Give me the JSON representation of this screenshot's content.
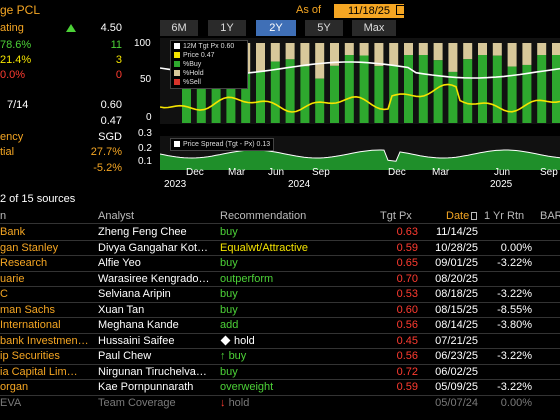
{
  "header": {
    "title_fragment": "ge PCL",
    "as_of_label": "As of",
    "as_of_date": "11/18/25",
    "ranges": [
      "6M",
      "1Y",
      "2Y",
      "5Y",
      "Max"
    ],
    "active_range": "2Y"
  },
  "stats": [
    {
      "label": "ating",
      "value": "4.50",
      "label_color": "#f5a623"
    },
    {
      "label": "78.6%",
      "value": "11",
      "label_color": "#4cd137"
    },
    {
      "label": "21.4%",
      "value": "3",
      "label_color": "#f5e400"
    },
    {
      "label": "0.0%",
      "value": "0",
      "label_color": "#ff3b30"
    },
    {
      "label": "7/14",
      "value": "0.60",
      "label_color": "#ffffff"
    },
    {
      "label": "",
      "value": "0.47",
      "label_color": "#ffffff"
    },
    {
      "label": "ency",
      "value": "SGD",
      "label_color": "#f5a623"
    },
    {
      "label": "tial",
      "value": "27.7%",
      "label_color": "#f5a623"
    },
    {
      "label": "",
      "value": "-5.2%",
      "label_color": "#f5a623"
    }
  ],
  "chart": {
    "y_ticks_main": [
      "100",
      "50",
      "0"
    ],
    "y_ticks_spread": [
      "0.3",
      "0.2",
      "0.1"
    ],
    "legend_main": [
      {
        "label": "12M Tgt Px",
        "value": "0.60",
        "color": "#ffffff"
      },
      {
        "label": "Price",
        "value": "0.47",
        "color": "#f5e400"
      },
      {
        "label": "%Buy",
        "value": "",
        "color": "#2ea82e"
      },
      {
        "label": "%Hold",
        "value": "",
        "color": "#d8c89a"
      },
      {
        "label": "%Sell",
        "value": "",
        "color": "#d9342b"
      }
    ],
    "legend_spread": {
      "label": "Price Spread (Tgt - Px)",
      "value": "0.13"
    },
    "x_months": [
      "Dec",
      "Mar",
      "Jun",
      "Sep",
      "Dec",
      "Mar",
      "Jun",
      "Sep"
    ],
    "x_years": [
      "2023",
      "2024",
      "2025"
    ]
  },
  "sources_label": "2 of 15 sources",
  "table": {
    "columns": [
      "n",
      "Analyst",
      "Recommendation",
      "Tgt Px",
      "Date",
      "1 Yr Rtn",
      "BAR"
    ],
    "rows": [
      {
        "firm": "Bank",
        "analyst": "Zheng Feng Chee",
        "rec": "buy",
        "rec_color": "#4cd137",
        "marker": "",
        "tgt": "0.63",
        "date": "11/14/25",
        "rtn": ""
      },
      {
        "firm": "gan Stanley",
        "analyst": "Divya Gangahar Kot…",
        "rec": "Equalwt/Attractive",
        "rec_color": "#f5e400",
        "marker": "",
        "tgt": "0.59",
        "date": "10/28/25",
        "rtn": "0.00%"
      },
      {
        "firm": "Research",
        "analyst": "Alfie Yeo",
        "rec": "buy",
        "rec_color": "#4cd137",
        "marker": "",
        "tgt": "0.65",
        "date": "09/01/25",
        "rtn": "-3.22%"
      },
      {
        "firm": "uarie",
        "analyst": "Warasiree Kengrado…",
        "rec": "outperform",
        "rec_color": "#4cd137",
        "marker": "",
        "tgt": "0.70",
        "date": "08/20/25",
        "rtn": ""
      },
      {
        "firm": "C",
        "analyst": "Selviana Aripin",
        "rec": "buy",
        "rec_color": "#4cd137",
        "marker": "",
        "tgt": "0.53",
        "date": "08/18/25",
        "rtn": "-3.22%"
      },
      {
        "firm": "man Sachs",
        "analyst": "Xuan Tan",
        "rec": "buy",
        "rec_color": "#4cd137",
        "marker": "",
        "tgt": "0.60",
        "date": "08/15/25",
        "rtn": "-8.55%"
      },
      {
        "firm": "International",
        "analyst": "Meghana Kande",
        "rec": "add",
        "rec_color": "#4cd137",
        "marker": "",
        "tgt": "0.56",
        "date": "08/14/25",
        "rtn": "-3.80%"
      },
      {
        "firm": "bank Investmen…",
        "analyst": "Hussaini Saifee",
        "rec": "hold",
        "rec_color": "#f5e400",
        "marker": "diamond",
        "tgt": "0.45",
        "date": "07/21/25",
        "rtn": ""
      },
      {
        "firm": "ip Securities",
        "analyst": "Paul Chew",
        "rec": "buy",
        "rec_color": "#4cd137",
        "marker": "up",
        "tgt": "0.56",
        "date": "06/23/25",
        "rtn": "-3.22%"
      },
      {
        "firm": "ia Capital Lim…",
        "analyst": "Nirgunan Tiruchelva…",
        "rec": "buy",
        "rec_color": "#4cd137",
        "marker": "",
        "tgt": "0.72",
        "date": "06/02/25",
        "rtn": ""
      },
      {
        "firm": "organ",
        "analyst": "Kae Pornpunnarath",
        "rec": "overweight",
        "rec_color": "#4cd137",
        "marker": "",
        "tgt": "0.59",
        "date": "05/09/25",
        "rtn": "-3.22%"
      },
      {
        "firm": "EVA",
        "analyst": "Team Coverage",
        "rec": "hold",
        "rec_color": "#7a7a7a",
        "marker": "down",
        "tgt": "",
        "date": "05/07/24",
        "rtn": "0.00%"
      }
    ]
  }
}
